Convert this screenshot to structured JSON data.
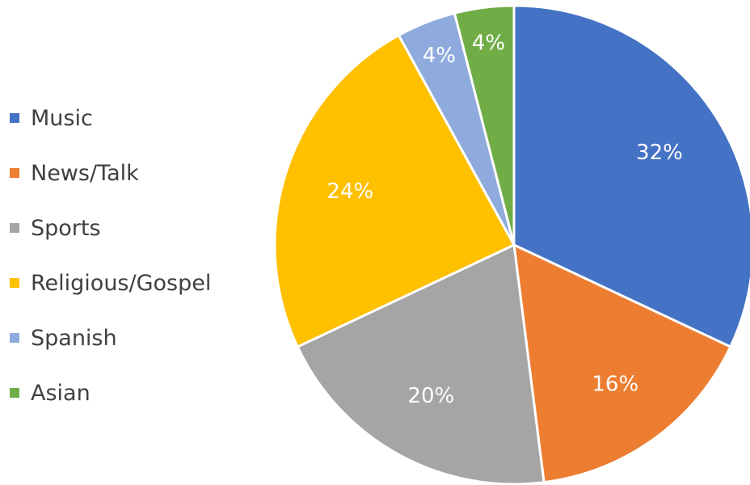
{
  "chart_data": {
    "type": "pie",
    "categories": [
      "Music",
      "News/Talk",
      "Sports",
      "Religious/Gospel",
      "Spanish",
      "Asian"
    ],
    "values": [
      32,
      16,
      20,
      24,
      4,
      4
    ],
    "labels": [
      "32%",
      "16%",
      "20%",
      "24%",
      "4%",
      "4%"
    ],
    "colors": [
      "#4472C4",
      "#ED7D31",
      "#A5A5A5",
      "#FFC000",
      "#8FAADC",
      "#70AD47"
    ],
    "legend_position": "left",
    "start_angle_deg": 0,
    "direction": "clockwise"
  }
}
